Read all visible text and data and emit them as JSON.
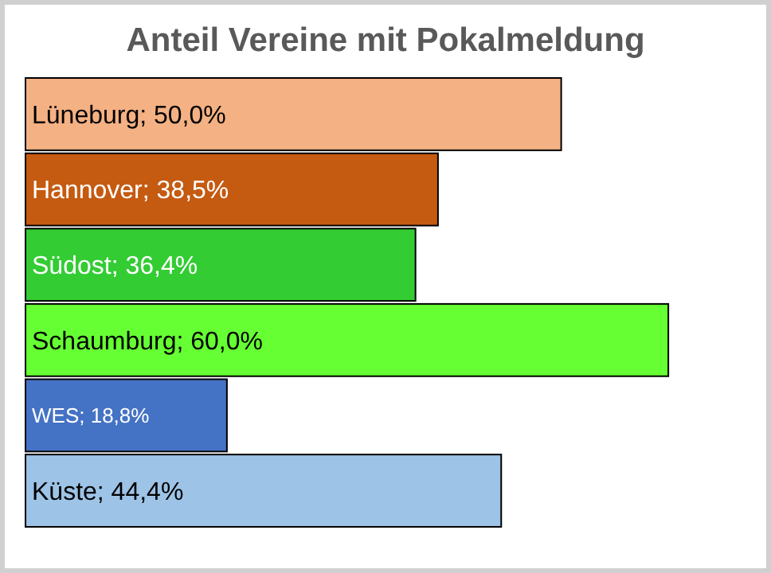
{
  "chart_data": {
    "type": "bar",
    "orientation": "horizontal",
    "title": "Anteil Vereine mit Pokalmeldung",
    "categories": [
      null,
      null,
      null,
      null,
      null,
      null
    ],
    "values": [
      50.0,
      38.5,
      36.4,
      60.0,
      18.8,
      44.4
    ],
    "colors": [
      "#f4b183",
      "#c55a11",
      "#33cc33",
      "#66ff33",
      "#4472c4",
      "#9dc3e6"
    ],
    "value_labels": [
      "Lüneburg; 50,0%",
      "Hannover; 38,5%",
      "Südost; 36,4%",
      "Schaumburg; 60,0%",
      "WES; 18,8%",
      "Küste; 44,4%"
    ]
  }
}
